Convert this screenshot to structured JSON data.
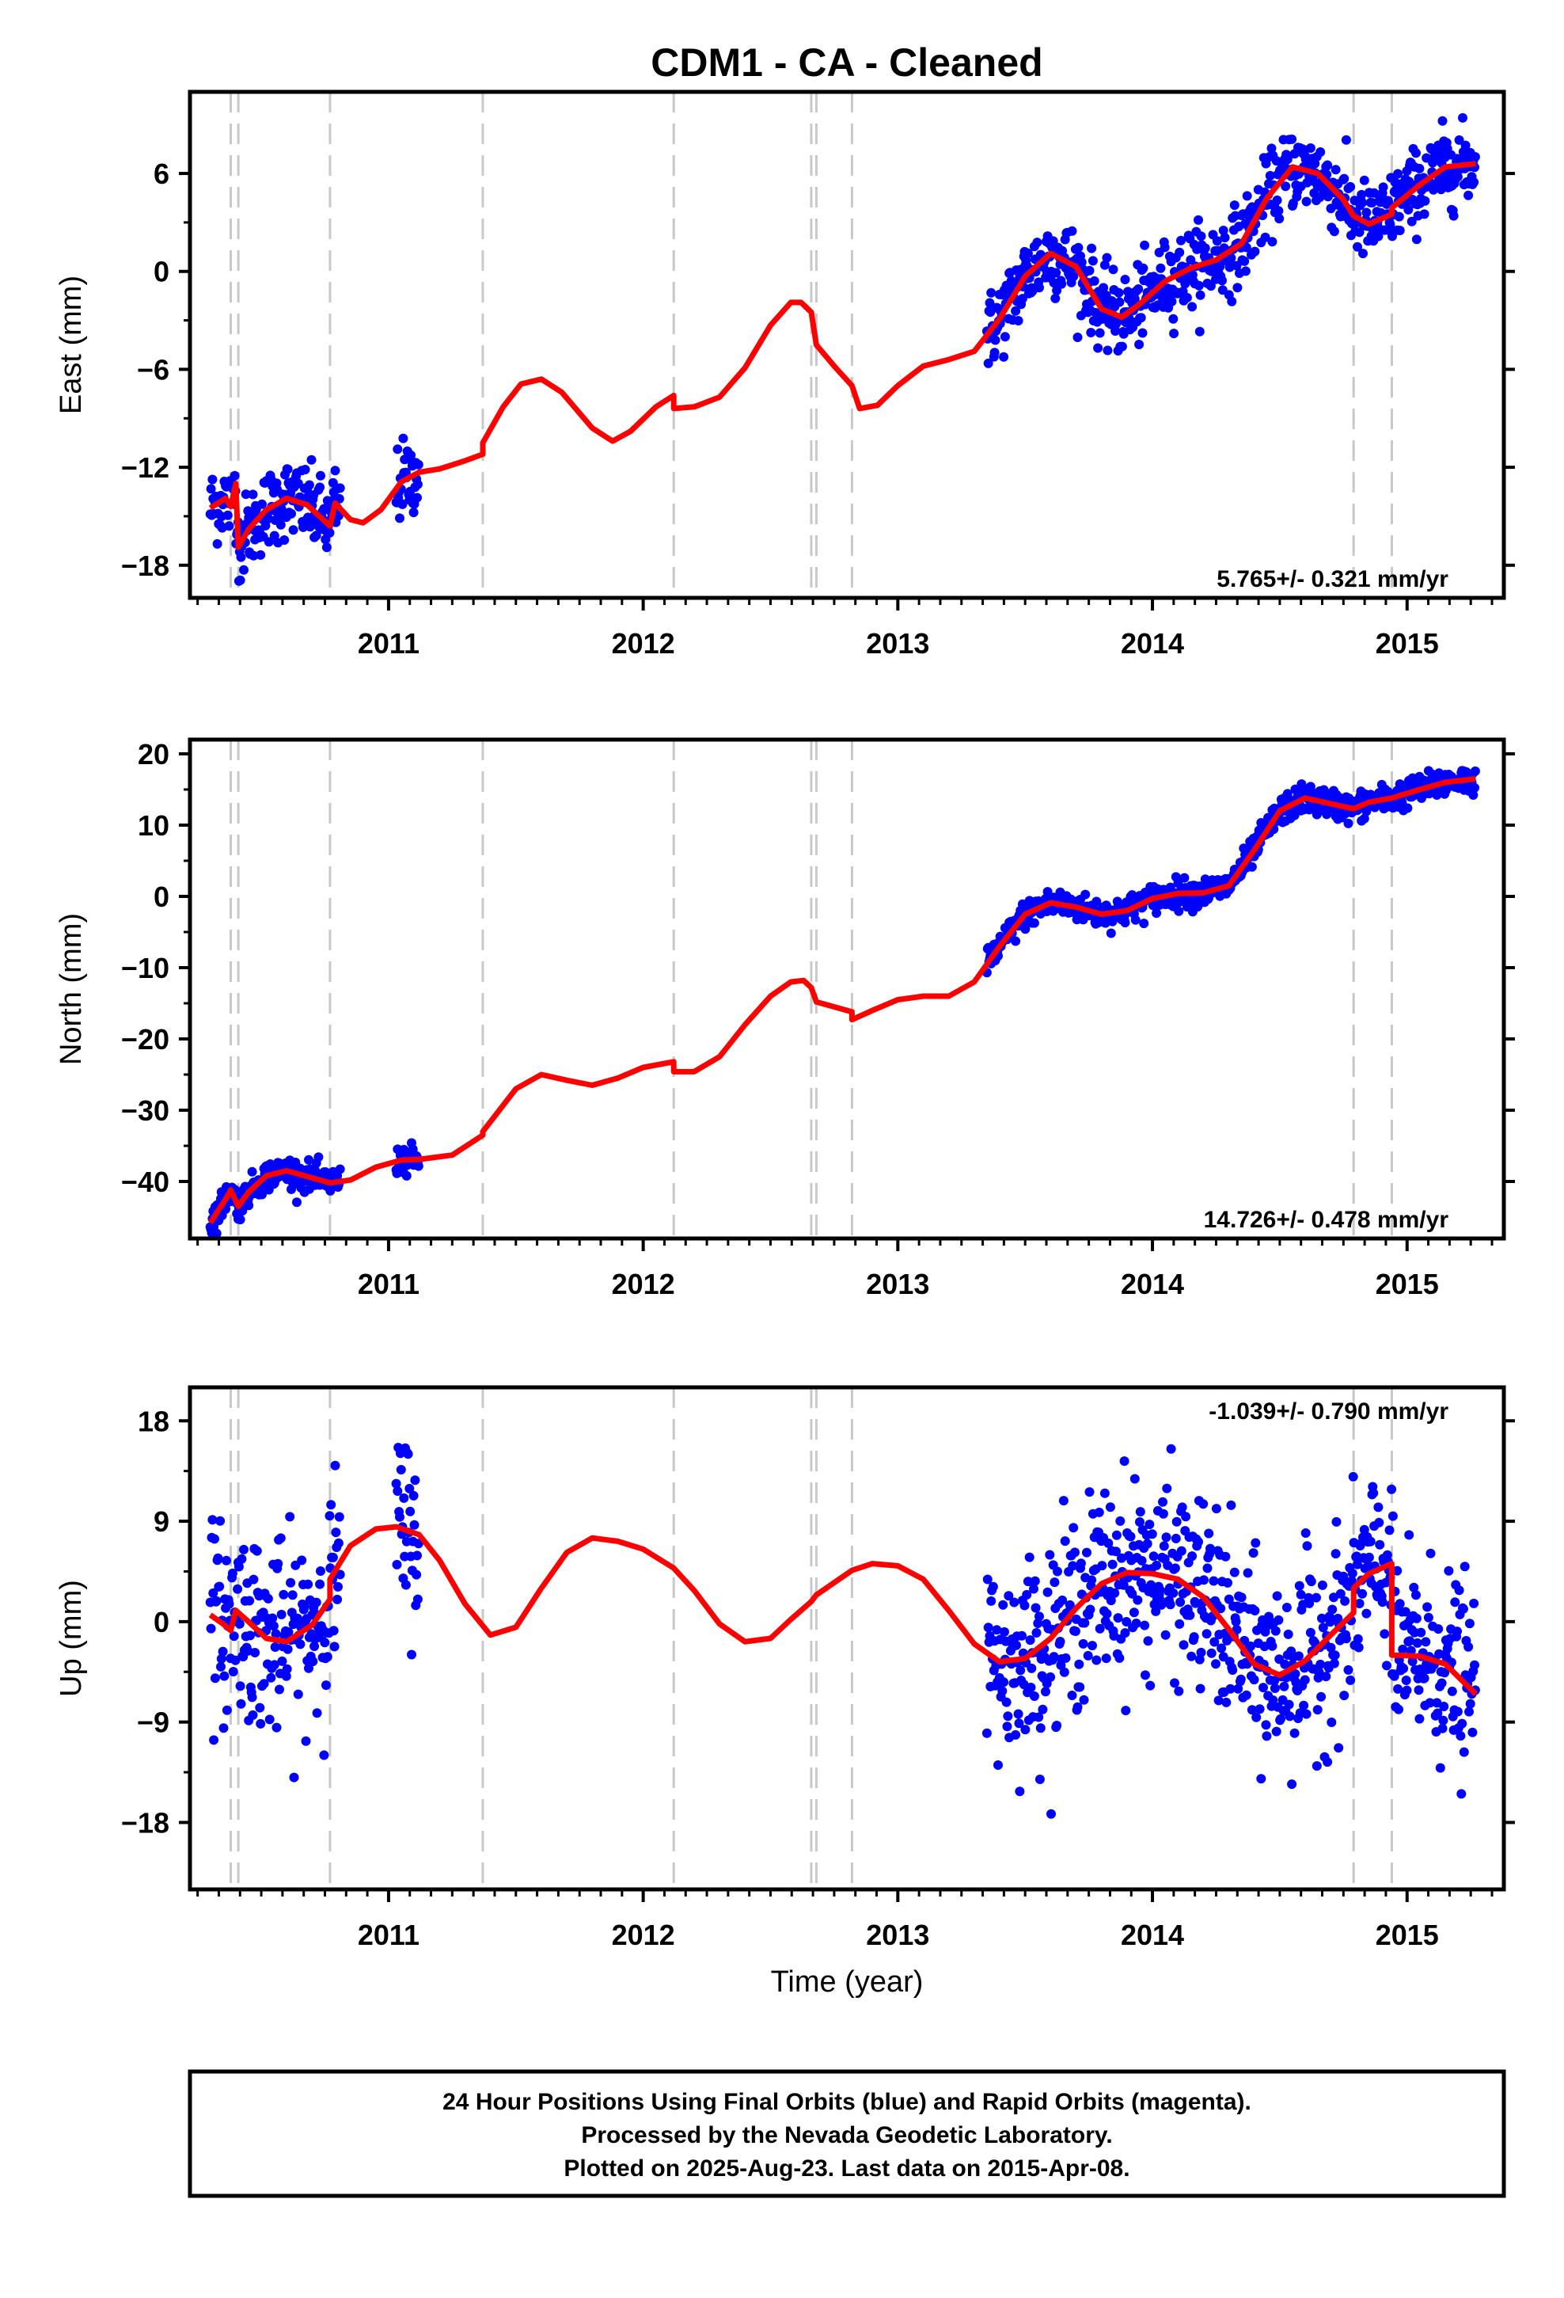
{
  "title": "CDM1  - CA - Cleaned",
  "xlabel": "Time (year)",
  "footer": {
    "line1": "24 Hour Positions Using Final Orbits (blue) and Rapid Orbits (magenta).",
    "line2": "Processed by the Nevada Geodetic Laboratory.",
    "line3": "Plotted on 2025-Aug-23. Last data on 2015-Apr-08."
  },
  "colors": {
    "points": "#0000ff",
    "model": "#ff0000",
    "breaks": "#c8c8c8",
    "axes": "#000000"
  },
  "chart_data": [
    {
      "type": "scatter",
      "panel": "east",
      "ylabel": "East (mm)",
      "rate_text": "5.765+/- 0.321 mm/yr",
      "rate_position": "bottom-right",
      "xlim": [
        2010.22,
        2015.38
      ],
      "ylim": [
        -20,
        11
      ],
      "yticks": [
        -18,
        -12,
        -6,
        0,
        6
      ],
      "xticks": [
        2011,
        2012,
        2013,
        2014,
        2015
      ],
      "break_epochs": [
        2010.38,
        2010.41,
        2010.77,
        2011.37,
        2012.12,
        2012.66,
        2012.68,
        2012.82,
        2014.79,
        2014.94
      ],
      "data_segments": [
        [
          2010.3,
          2010.81
        ],
        [
          2011.03,
          2011.12
        ],
        [
          2013.35,
          2015.27
        ]
      ],
      "model": [
        [
          2010.3,
          -14.5
        ],
        [
          2010.36,
          -13.9
        ],
        [
          2010.38,
          -14.4
        ],
        [
          2010.4,
          -13.0
        ],
        [
          2010.41,
          -16.9
        ],
        [
          2010.45,
          -15.8
        ],
        [
          2010.52,
          -14.6
        ],
        [
          2010.6,
          -13.9
        ],
        [
          2010.68,
          -14.3
        ],
        [
          2010.77,
          -15.6
        ],
        [
          2010.79,
          -14.2
        ],
        [
          2010.85,
          -15.2
        ],
        [
          2010.9,
          -15.4
        ],
        [
          2010.97,
          -14.6
        ],
        [
          2011.05,
          -12.9
        ],
        [
          2011.12,
          -12.3
        ],
        [
          2011.2,
          -12.1
        ],
        [
          2011.3,
          -11.6
        ],
        [
          2011.37,
          -11.2
        ],
        [
          2011.37,
          -10.5
        ],
        [
          2011.45,
          -8.3
        ],
        [
          2011.52,
          -6.9
        ],
        [
          2011.6,
          -6.6
        ],
        [
          2011.68,
          -7.4
        ],
        [
          2011.8,
          -9.6
        ],
        [
          2011.88,
          -10.4
        ],
        [
          2011.95,
          -9.8
        ],
        [
          2012.05,
          -8.3
        ],
        [
          2012.12,
          -7.6
        ],
        [
          2012.12,
          -8.4
        ],
        [
          2012.2,
          -8.3
        ],
        [
          2012.3,
          -7.7
        ],
        [
          2012.4,
          -5.9
        ],
        [
          2012.5,
          -3.3
        ],
        [
          2012.58,
          -1.9
        ],
        [
          2012.62,
          -1.9
        ],
        [
          2012.66,
          -2.5
        ],
        [
          2012.68,
          -4.5
        ],
        [
          2012.75,
          -5.8
        ],
        [
          2012.82,
          -7.0
        ],
        [
          2012.85,
          -8.4
        ],
        [
          2012.92,
          -8.2
        ],
        [
          2013.0,
          -7.0
        ],
        [
          2013.1,
          -5.8
        ],
        [
          2013.2,
          -5.4
        ],
        [
          2013.3,
          -4.9
        ],
        [
          2013.4,
          -2.9
        ],
        [
          2013.5,
          -0.3
        ],
        [
          2013.6,
          1.1
        ],
        [
          2013.7,
          0.3
        ],
        [
          2013.8,
          -2.3
        ],
        [
          2013.88,
          -2.8
        ],
        [
          2013.95,
          -2.0
        ],
        [
          2014.05,
          -0.6
        ],
        [
          2014.15,
          0.2
        ],
        [
          2014.25,
          0.7
        ],
        [
          2014.35,
          1.7
        ],
        [
          2014.45,
          4.5
        ],
        [
          2014.55,
          6.4
        ],
        [
          2014.65,
          6.0
        ],
        [
          2014.75,
          4.4
        ],
        [
          2014.79,
          3.4
        ],
        [
          2014.85,
          2.9
        ],
        [
          2014.94,
          3.5
        ],
        [
          2014.94,
          3.9
        ],
        [
          2015.05,
          5.3
        ],
        [
          2015.15,
          6.4
        ],
        [
          2015.27,
          6.6
        ]
      ]
    },
    {
      "type": "scatter",
      "panel": "north",
      "ylabel": "North (mm)",
      "rate_text": "14.726+/- 0.478 mm/yr",
      "rate_position": "bottom-right",
      "xlim": [
        2010.22,
        2015.38
      ],
      "ylim": [
        -48,
        22
      ],
      "yticks": [
        -40,
        -30,
        -20,
        -10,
        0,
        10,
        20
      ],
      "xticks": [
        2011,
        2012,
        2013,
        2014,
        2015
      ],
      "break_epochs": [
        2010.38,
        2010.41,
        2010.77,
        2011.37,
        2012.12,
        2012.66,
        2012.68,
        2012.82,
        2014.79,
        2014.94
      ],
      "data_segments": [
        [
          2010.3,
          2010.81
        ],
        [
          2011.03,
          2011.12
        ],
        [
          2013.35,
          2015.27
        ]
      ],
      "model": [
        [
          2010.3,
          -45.8
        ],
        [
          2010.36,
          -42.5
        ],
        [
          2010.38,
          -41.2
        ],
        [
          2010.41,
          -43.5
        ],
        [
          2010.45,
          -41.5
        ],
        [
          2010.52,
          -39.2
        ],
        [
          2010.6,
          -38.5
        ],
        [
          2010.7,
          -39.5
        ],
        [
          2010.77,
          -40.2
        ],
        [
          2010.85,
          -39.8
        ],
        [
          2010.95,
          -38.0
        ],
        [
          2011.05,
          -37.0
        ],
        [
          2011.12,
          -36.9
        ],
        [
          2011.25,
          -36.3
        ],
        [
          2011.37,
          -33.5
        ],
        [
          2011.37,
          -33.0
        ],
        [
          2011.5,
          -27.0
        ],
        [
          2011.6,
          -25.0
        ],
        [
          2011.7,
          -25.8
        ],
        [
          2011.8,
          -26.5
        ],
        [
          2011.9,
          -25.5
        ],
        [
          2012.0,
          -24.0
        ],
        [
          2012.12,
          -23.2
        ],
        [
          2012.12,
          -24.6
        ],
        [
          2012.2,
          -24.6
        ],
        [
          2012.3,
          -22.5
        ],
        [
          2012.4,
          -18.0
        ],
        [
          2012.5,
          -14.0
        ],
        [
          2012.58,
          -12.0
        ],
        [
          2012.63,
          -11.8
        ],
        [
          2012.66,
          -12.8
        ],
        [
          2012.68,
          -14.8
        ],
        [
          2012.75,
          -15.5
        ],
        [
          2012.82,
          -16.2
        ],
        [
          2012.82,
          -17.3
        ],
        [
          2012.9,
          -16.0
        ],
        [
          2013.0,
          -14.5
        ],
        [
          2013.1,
          -14.0
        ],
        [
          2013.2,
          -14.0
        ],
        [
          2013.3,
          -12.0
        ],
        [
          2013.4,
          -7.0
        ],
        [
          2013.5,
          -2.5
        ],
        [
          2013.6,
          -0.9
        ],
        [
          2013.7,
          -1.5
        ],
        [
          2013.8,
          -2.5
        ],
        [
          2013.9,
          -2.0
        ],
        [
          2014.0,
          -0.3
        ],
        [
          2014.1,
          0.4
        ],
        [
          2014.2,
          0.5
        ],
        [
          2014.3,
          1.5
        ],
        [
          2014.4,
          6.5
        ],
        [
          2014.5,
          12.0
        ],
        [
          2014.6,
          13.8
        ],
        [
          2014.7,
          13.0
        ],
        [
          2014.79,
          12.3
        ],
        [
          2014.85,
          13.2
        ],
        [
          2014.94,
          13.8
        ],
        [
          2015.05,
          15.0
        ],
        [
          2015.15,
          16.0
        ],
        [
          2015.27,
          16.5
        ]
      ]
    },
    {
      "type": "scatter",
      "panel": "up",
      "ylabel": "Up (mm)",
      "rate_text": "-1.039+/- 0.790 mm/yr",
      "rate_position": "top-right",
      "xlim": [
        2010.22,
        2015.38
      ],
      "ylim": [
        -24,
        21
      ],
      "yticks": [
        -18,
        -9,
        0,
        9,
        18
      ],
      "xticks": [
        2011,
        2012,
        2013,
        2014,
        2015
      ],
      "break_epochs": [
        2010.38,
        2010.41,
        2010.77,
        2011.37,
        2012.12,
        2012.66,
        2012.68,
        2012.82,
        2014.79,
        2014.94
      ],
      "data_segments": [
        [
          2010.3,
          2010.81
        ],
        [
          2011.03,
          2011.12
        ],
        [
          2013.35,
          2015.27
        ]
      ],
      "model": [
        [
          2010.3,
          0.6
        ],
        [
          2010.35,
          -0.2
        ],
        [
          2010.38,
          -0.8
        ],
        [
          2010.4,
          1.0
        ],
        [
          2010.45,
          0.0
        ],
        [
          2010.52,
          -1.5
        ],
        [
          2010.6,
          -1.8
        ],
        [
          2010.7,
          -0.3
        ],
        [
          2010.77,
          2.0
        ],
        [
          2010.77,
          3.8
        ],
        [
          2010.85,
          6.8
        ],
        [
          2010.95,
          8.3
        ],
        [
          2011.03,
          8.5
        ],
        [
          2011.12,
          7.8
        ],
        [
          2011.2,
          5.5
        ],
        [
          2011.3,
          1.6
        ],
        [
          2011.4,
          -1.2
        ],
        [
          2011.5,
          -0.5
        ],
        [
          2011.6,
          3.0
        ],
        [
          2011.7,
          6.2
        ],
        [
          2011.8,
          7.5
        ],
        [
          2011.9,
          7.2
        ],
        [
          2012.0,
          6.5
        ],
        [
          2012.12,
          4.8
        ],
        [
          2012.2,
          2.8
        ],
        [
          2012.3,
          -0.2
        ],
        [
          2012.4,
          -1.8
        ],
        [
          2012.5,
          -1.5
        ],
        [
          2012.58,
          0.2
        ],
        [
          2012.66,
          1.8
        ],
        [
          2012.68,
          2.4
        ],
        [
          2012.82,
          4.6
        ],
        [
          2012.9,
          5.2
        ],
        [
          2013.0,
          5.0
        ],
        [
          2013.1,
          3.8
        ],
        [
          2013.2,
          1.0
        ],
        [
          2013.3,
          -2.0
        ],
        [
          2013.4,
          -3.6
        ],
        [
          2013.5,
          -3.3
        ],
        [
          2013.6,
          -1.5
        ],
        [
          2013.7,
          1.2
        ],
        [
          2013.8,
          3.4
        ],
        [
          2013.9,
          4.4
        ],
        [
          2014.0,
          4.3
        ],
        [
          2014.1,
          3.8
        ],
        [
          2014.2,
          2.2
        ],
        [
          2014.3,
          -0.7
        ],
        [
          2014.4,
          -3.8
        ],
        [
          2014.5,
          -4.8
        ],
        [
          2014.6,
          -3.5
        ],
        [
          2014.7,
          -1.2
        ],
        [
          2014.79,
          0.8
        ],
        [
          2014.79,
          3.0
        ],
        [
          2014.85,
          4.3
        ],
        [
          2014.94,
          5.2
        ],
        [
          2014.94,
          -3.0
        ],
        [
          2015.05,
          -3.1
        ],
        [
          2015.15,
          -3.8
        ],
        [
          2015.27,
          -6.5
        ]
      ]
    }
  ]
}
